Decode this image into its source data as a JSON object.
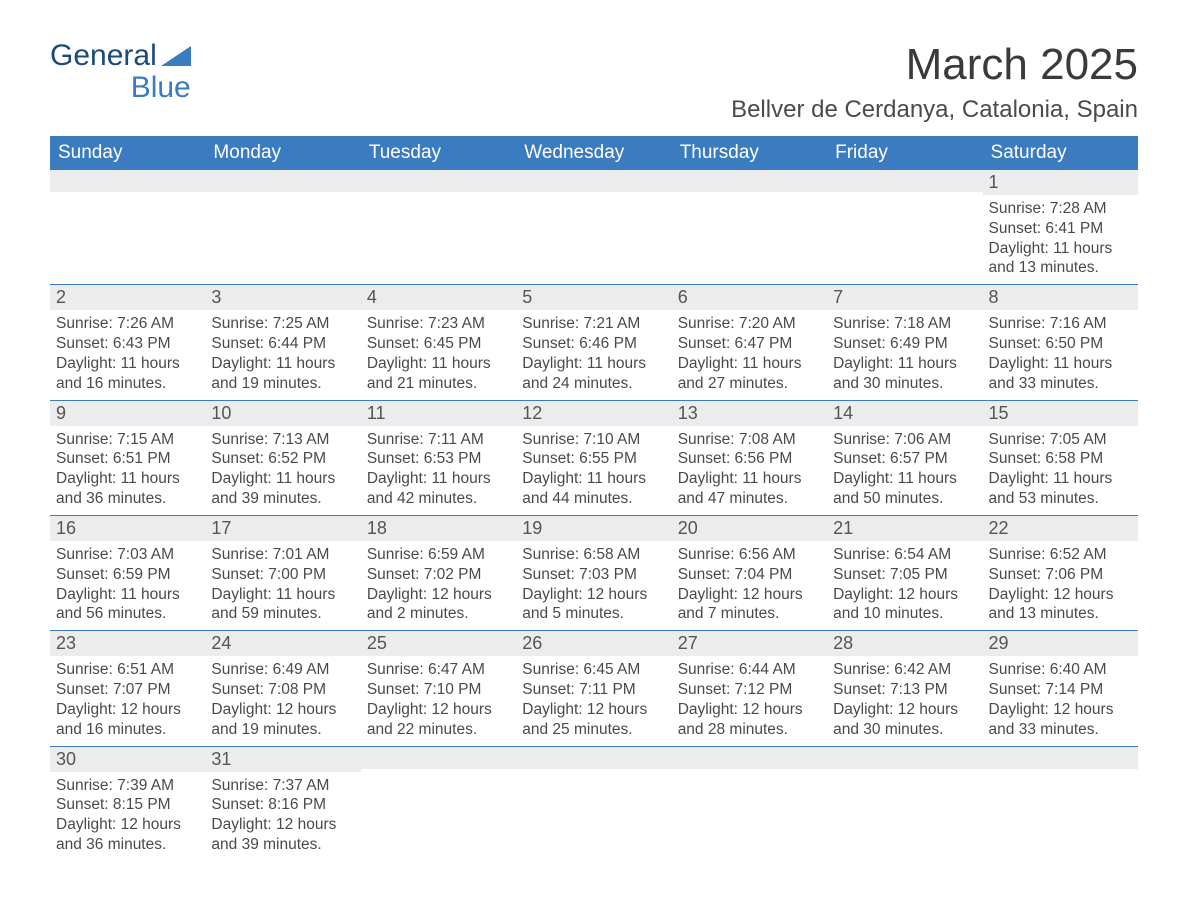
{
  "logo": {
    "line1": "General",
    "line2": "Blue"
  },
  "title": "March 2025",
  "location": "Bellver de Cerdanya, Catalonia, Spain",
  "colors": {
    "header_bg": "#3b7bbf",
    "header_text": "#ffffff",
    "daynum_bg": "#ececec",
    "body_text": "#4a4a4a",
    "row_border": "#3b7bbf",
    "page_bg": "#ffffff",
    "logo_dark": "#1a4a7a",
    "logo_blue": "#3b7bbf"
  },
  "typography": {
    "title_fontsize": 44,
    "location_fontsize": 24,
    "header_fontsize": 19,
    "daynum_fontsize": 18,
    "cell_fontsize": 15.5,
    "font_family": "Arial"
  },
  "day_headers": [
    "Sunday",
    "Monday",
    "Tuesday",
    "Wednesday",
    "Thursday",
    "Friday",
    "Saturday"
  ],
  "weeks": [
    [
      null,
      null,
      null,
      null,
      null,
      null,
      {
        "day": "1",
        "sunrise": "7:28 AM",
        "sunset": "6:41 PM",
        "daylight_l1": "Daylight: 11 hours",
        "daylight_l2": "and 13 minutes."
      }
    ],
    [
      {
        "day": "2",
        "sunrise": "7:26 AM",
        "sunset": "6:43 PM",
        "daylight_l1": "Daylight: 11 hours",
        "daylight_l2": "and 16 minutes."
      },
      {
        "day": "3",
        "sunrise": "7:25 AM",
        "sunset": "6:44 PM",
        "daylight_l1": "Daylight: 11 hours",
        "daylight_l2": "and 19 minutes."
      },
      {
        "day": "4",
        "sunrise": "7:23 AM",
        "sunset": "6:45 PM",
        "daylight_l1": "Daylight: 11 hours",
        "daylight_l2": "and 21 minutes."
      },
      {
        "day": "5",
        "sunrise": "7:21 AM",
        "sunset": "6:46 PM",
        "daylight_l1": "Daylight: 11 hours",
        "daylight_l2": "and 24 minutes."
      },
      {
        "day": "6",
        "sunrise": "7:20 AM",
        "sunset": "6:47 PM",
        "daylight_l1": "Daylight: 11 hours",
        "daylight_l2": "and 27 minutes."
      },
      {
        "day": "7",
        "sunrise": "7:18 AM",
        "sunset": "6:49 PM",
        "daylight_l1": "Daylight: 11 hours",
        "daylight_l2": "and 30 minutes."
      },
      {
        "day": "8",
        "sunrise": "7:16 AM",
        "sunset": "6:50 PM",
        "daylight_l1": "Daylight: 11 hours",
        "daylight_l2": "and 33 minutes."
      }
    ],
    [
      {
        "day": "9",
        "sunrise": "7:15 AM",
        "sunset": "6:51 PM",
        "daylight_l1": "Daylight: 11 hours",
        "daylight_l2": "and 36 minutes."
      },
      {
        "day": "10",
        "sunrise": "7:13 AM",
        "sunset": "6:52 PM",
        "daylight_l1": "Daylight: 11 hours",
        "daylight_l2": "and 39 minutes."
      },
      {
        "day": "11",
        "sunrise": "7:11 AM",
        "sunset": "6:53 PM",
        "daylight_l1": "Daylight: 11 hours",
        "daylight_l2": "and 42 minutes."
      },
      {
        "day": "12",
        "sunrise": "7:10 AM",
        "sunset": "6:55 PM",
        "daylight_l1": "Daylight: 11 hours",
        "daylight_l2": "and 44 minutes."
      },
      {
        "day": "13",
        "sunrise": "7:08 AM",
        "sunset": "6:56 PM",
        "daylight_l1": "Daylight: 11 hours",
        "daylight_l2": "and 47 minutes."
      },
      {
        "day": "14",
        "sunrise": "7:06 AM",
        "sunset": "6:57 PM",
        "daylight_l1": "Daylight: 11 hours",
        "daylight_l2": "and 50 minutes."
      },
      {
        "day": "15",
        "sunrise": "7:05 AM",
        "sunset": "6:58 PM",
        "daylight_l1": "Daylight: 11 hours",
        "daylight_l2": "and 53 minutes."
      }
    ],
    [
      {
        "day": "16",
        "sunrise": "7:03 AM",
        "sunset": "6:59 PM",
        "daylight_l1": "Daylight: 11 hours",
        "daylight_l2": "and 56 minutes."
      },
      {
        "day": "17",
        "sunrise": "7:01 AM",
        "sunset": "7:00 PM",
        "daylight_l1": "Daylight: 11 hours",
        "daylight_l2": "and 59 minutes."
      },
      {
        "day": "18",
        "sunrise": "6:59 AM",
        "sunset": "7:02 PM",
        "daylight_l1": "Daylight: 12 hours",
        "daylight_l2": "and 2 minutes."
      },
      {
        "day": "19",
        "sunrise": "6:58 AM",
        "sunset": "7:03 PM",
        "daylight_l1": "Daylight: 12 hours",
        "daylight_l2": "and 5 minutes."
      },
      {
        "day": "20",
        "sunrise": "6:56 AM",
        "sunset": "7:04 PM",
        "daylight_l1": "Daylight: 12 hours",
        "daylight_l2": "and 7 minutes."
      },
      {
        "day": "21",
        "sunrise": "6:54 AM",
        "sunset": "7:05 PM",
        "daylight_l1": "Daylight: 12 hours",
        "daylight_l2": "and 10 minutes."
      },
      {
        "day": "22",
        "sunrise": "6:52 AM",
        "sunset": "7:06 PM",
        "daylight_l1": "Daylight: 12 hours",
        "daylight_l2": "and 13 minutes."
      }
    ],
    [
      {
        "day": "23",
        "sunrise": "6:51 AM",
        "sunset": "7:07 PM",
        "daylight_l1": "Daylight: 12 hours",
        "daylight_l2": "and 16 minutes."
      },
      {
        "day": "24",
        "sunrise": "6:49 AM",
        "sunset": "7:08 PM",
        "daylight_l1": "Daylight: 12 hours",
        "daylight_l2": "and 19 minutes."
      },
      {
        "day": "25",
        "sunrise": "6:47 AM",
        "sunset": "7:10 PM",
        "daylight_l1": "Daylight: 12 hours",
        "daylight_l2": "and 22 minutes."
      },
      {
        "day": "26",
        "sunrise": "6:45 AM",
        "sunset": "7:11 PM",
        "daylight_l1": "Daylight: 12 hours",
        "daylight_l2": "and 25 minutes."
      },
      {
        "day": "27",
        "sunrise": "6:44 AM",
        "sunset": "7:12 PM",
        "daylight_l1": "Daylight: 12 hours",
        "daylight_l2": "and 28 minutes."
      },
      {
        "day": "28",
        "sunrise": "6:42 AM",
        "sunset": "7:13 PM",
        "daylight_l1": "Daylight: 12 hours",
        "daylight_l2": "and 30 minutes."
      },
      {
        "day": "29",
        "sunrise": "6:40 AM",
        "sunset": "7:14 PM",
        "daylight_l1": "Daylight: 12 hours",
        "daylight_l2": "and 33 minutes."
      }
    ],
    [
      {
        "day": "30",
        "sunrise": "7:39 AM",
        "sunset": "8:15 PM",
        "daylight_l1": "Daylight: 12 hours",
        "daylight_l2": "and 36 minutes."
      },
      {
        "day": "31",
        "sunrise": "7:37 AM",
        "sunset": "8:16 PM",
        "daylight_l1": "Daylight: 12 hours",
        "daylight_l2": "and 39 minutes."
      },
      null,
      null,
      null,
      null,
      null
    ]
  ],
  "labels": {
    "sunrise_prefix": "Sunrise: ",
    "sunset_prefix": "Sunset: "
  }
}
